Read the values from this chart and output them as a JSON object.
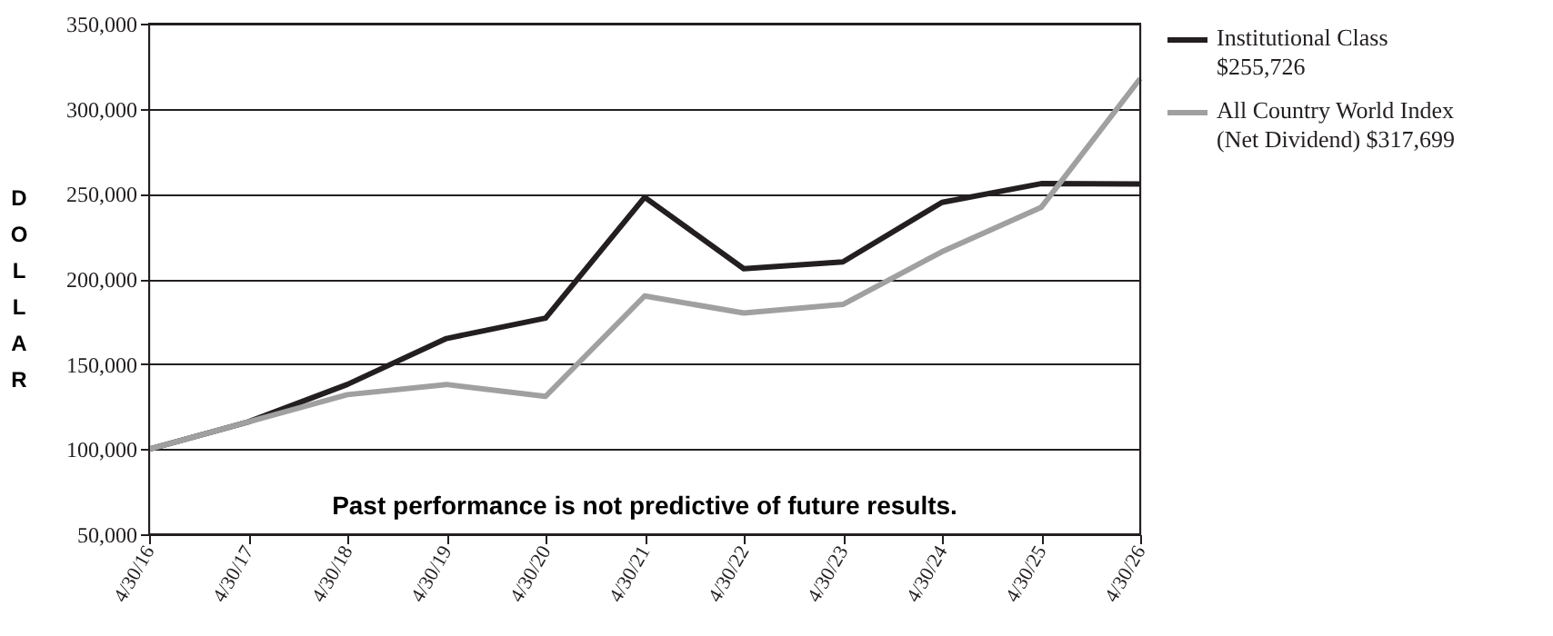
{
  "chart_data": {
    "type": "line",
    "ylabel": "DOLLAR",
    "categories": [
      "4/30/16",
      "4/30/17",
      "4/30/18",
      "4/30/19",
      "4/30/20",
      "4/30/21",
      "4/30/22",
      "4/30/23",
      "4/30/24",
      "4/30/25",
      "4/30/26"
    ],
    "series": [
      {
        "name": "Institutional Class $255,726",
        "color": "#231f20",
        "values": [
          100000,
          116000,
          138000,
          165000,
          177000,
          248000,
          206000,
          210000,
          245000,
          256000,
          255726
        ]
      },
      {
        "name": "All Country World Index (Net Dividend) $317,699",
        "color": "#a0a0a0",
        "values": [
          100000,
          116000,
          132000,
          138000,
          131000,
          190000,
          180000,
          185000,
          216000,
          242000,
          317699
        ]
      }
    ],
    "ylim": [
      50000,
      350000
    ],
    "yticks": [
      {
        "value": 50000,
        "label": "50,000"
      },
      {
        "value": 100000,
        "label": "100,000"
      },
      {
        "value": 150000,
        "label": "150,000"
      },
      {
        "value": 200000,
        "label": "200,000"
      },
      {
        "value": 250000,
        "label": "250,000"
      },
      {
        "value": 300000,
        "label": "300,000"
      },
      {
        "value": 350000,
        "label": "350,000"
      }
    ],
    "grid": "y",
    "legend": "right",
    "marker": "none",
    "line_style": "solid",
    "annotations": [
      "Past performance is not predictive of future results."
    ]
  }
}
